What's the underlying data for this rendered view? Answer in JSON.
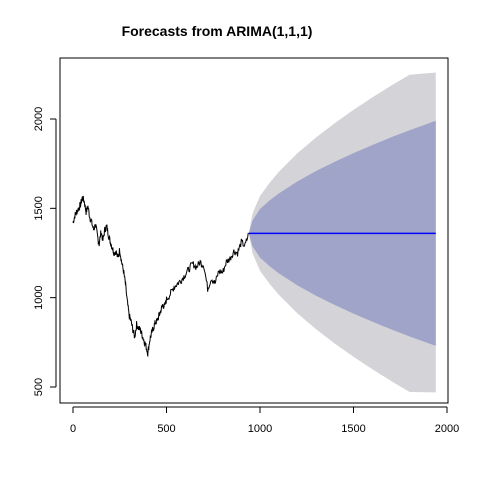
{
  "chart_data": {
    "type": "line",
    "title": "Forecasts from ARIMA(1,1,1)",
    "xlabel": "",
    "ylabel": "",
    "xlim": [
      0,
      2000
    ],
    "ylim": [
      500,
      2250
    ],
    "x_ticks": [
      0,
      500,
      1000,
      1500,
      2000
    ],
    "y_ticks": [
      500,
      1000,
      1500,
      2000
    ],
    "grid": false,
    "legend": "none",
    "colors": {
      "history": "#000000",
      "forecast": "#0000ff",
      "band_80": "#a0a4c8",
      "band_95": "#d4d4d8",
      "frame": "#000000"
    },
    "series": [
      {
        "kind": "observed",
        "x": [
          0,
          10,
          20,
          30,
          40,
          50,
          60,
          70,
          80,
          90,
          100,
          110,
          120,
          130,
          140,
          150,
          160,
          170,
          180,
          190,
          200,
          210,
          220,
          230,
          240,
          250,
          260,
          270,
          280,
          290,
          300,
          310,
          320,
          330,
          340,
          350,
          360,
          370,
          380,
          390,
          400,
          410,
          420,
          430,
          440,
          450,
          460,
          470,
          480,
          490,
          500,
          520,
          540,
          560,
          580,
          600,
          620,
          640,
          660,
          680,
          700,
          720,
          740,
          760,
          780,
          800,
          820,
          840,
          860,
          880,
          900,
          920,
          940
        ],
        "y": [
          1420,
          1460,
          1480,
          1500,
          1520,
          1560,
          1540,
          1480,
          1510,
          1450,
          1420,
          1380,
          1410,
          1350,
          1300,
          1370,
          1320,
          1380,
          1400,
          1350,
          1310,
          1280,
          1250,
          1260,
          1220,
          1270,
          1200,
          1150,
          1080,
          980,
          900,
          870,
          820,
          780,
          850,
          830,
          820,
          790,
          760,
          730,
          690,
          760,
          800,
          830,
          860,
          870,
          900,
          930,
          960,
          950,
          990,
          1020,
          1060,
          1080,
          1100,
          1130,
          1160,
          1190,
          1170,
          1200,
          1180,
          1050,
          1110,
          1080,
          1150,
          1140,
          1200,
          1220,
          1260,
          1250,
          1310,
          1290,
          1360
        ]
      },
      {
        "kind": "point-forecast",
        "x": [
          940,
          1940
        ],
        "y": [
          1360,
          1360
        ]
      },
      {
        "kind": "80% interval",
        "x": [
          940,
          960,
          1000,
          1050,
          1100,
          1200,
          1300,
          1400,
          1500,
          1600,
          1700,
          1800,
          1940
        ],
        "lower": [
          1360,
          1288,
          1224,
          1177,
          1137,
          1069,
          1011,
          959,
          911,
          866,
          823,
          783,
          730
        ],
        "upper": [
          1360,
          1432,
          1496,
          1543,
          1583,
          1651,
          1709,
          1761,
          1809,
          1854,
          1897,
          1937,
          1990
        ]
      },
      {
        "kind": "95% interval",
        "x": [
          940,
          960,
          1000,
          1050,
          1100,
          1200,
          1300,
          1400,
          1500,
          1600,
          1700,
          1800,
          1940
        ],
        "lower": [
          1360,
          1249,
          1151,
          1079,
          1017,
          912,
          823,
          743,
          669,
          600,
          534,
          472,
          470
        ],
        "upper": [
          1360,
          1471,
          1569,
          1641,
          1703,
          1808,
          1897,
          1977,
          2051,
          2120,
          2186,
          2248,
          2260
        ]
      }
    ]
  }
}
